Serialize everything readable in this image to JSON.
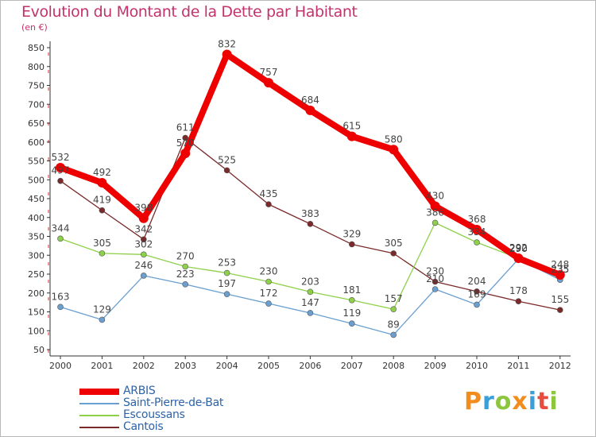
{
  "title": "Evolution du Montant de la Dette par Habitant",
  "subtitle": "(en €)",
  "chart_data": {
    "type": "line",
    "title": "Evolution du Montant de la Dette par Habitant",
    "ylabel": "(en €)",
    "xlabel": "",
    "x": [
      "2000",
      "2001",
      "2002",
      "2003",
      "2004",
      "2005",
      "2006",
      "2007",
      "2008",
      "2009",
      "2010",
      "2011",
      "2012"
    ],
    "ylim": [
      50,
      850
    ],
    "yticks": [
      50,
      100,
      150,
      200,
      250,
      300,
      350,
      400,
      450,
      500,
      550,
      600,
      650,
      700,
      750,
      800,
      850
    ],
    "grid": false,
    "legend_position": "bottom-left",
    "series": [
      {
        "name": "ARBIS",
        "color": "#ee0000",
        "values": [
          532,
          492,
          398,
          570,
          832,
          757,
          684,
          615,
          580,
          430,
          368,
          292,
          248
        ]
      },
      {
        "name": "Saint-Pierre-de-Bat",
        "color": "#6a9fd0",
        "values": [
          163,
          129,
          246,
          223,
          197,
          172,
          147,
          119,
          89,
          210,
          169,
          290,
          235
        ]
      },
      {
        "name": "Escoussans",
        "color": "#8ed04a",
        "values": [
          344,
          305,
          302,
          270,
          253,
          230,
          203,
          181,
          157,
          386,
          334,
          292,
          235
        ]
      },
      {
        "name": "Cantois",
        "color": "#7a2a2a",
        "values": [
          497,
          419,
          342,
          611,
          525,
          435,
          383,
          329,
          305,
          230,
          204,
          178,
          155
        ]
      }
    ]
  },
  "logo_text": "Proxiti"
}
